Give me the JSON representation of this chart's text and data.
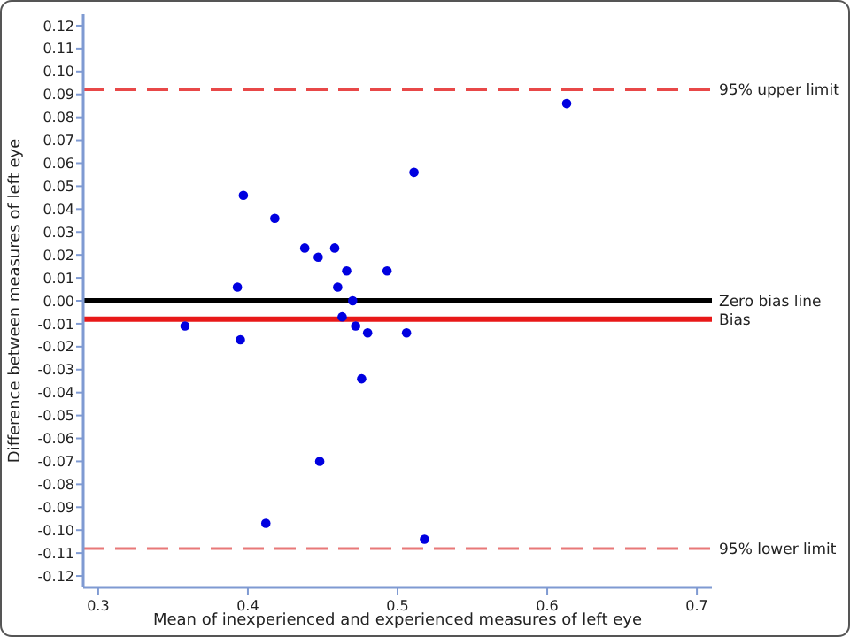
{
  "chart_data": {
    "type": "scatter",
    "xlabel": "Mean of inexperienced and experienced measures of left eye",
    "ylabel": "Difference between measures of left eye",
    "xlim": [
      0.29,
      0.71
    ],
    "ylim": [
      -0.125,
      0.125
    ],
    "xticks": [
      {
        "value": 0.3,
        "label": "0.3"
      },
      {
        "value": 0.4,
        "label": "0.4"
      },
      {
        "value": 0.5,
        "label": "0.5"
      },
      {
        "value": 0.6,
        "label": "0.6"
      },
      {
        "value": 0.7,
        "label": "0.7"
      }
    ],
    "yticks": [
      {
        "value": -0.12,
        "label": "-0.12"
      },
      {
        "value": -0.11,
        "label": "-0.11"
      },
      {
        "value": -0.1,
        "label": "-0.10"
      },
      {
        "value": -0.09,
        "label": "-0.09"
      },
      {
        "value": -0.08,
        "label": "-0.08"
      },
      {
        "value": -0.07,
        "label": "-0.07"
      },
      {
        "value": -0.06,
        "label": "-0.06"
      },
      {
        "value": -0.05,
        "label": "-0.05"
      },
      {
        "value": -0.04,
        "label": "-0.04"
      },
      {
        "value": -0.03,
        "label": "-0.03"
      },
      {
        "value": -0.02,
        "label": "-0.02"
      },
      {
        "value": -0.01,
        "label": "-0.01"
      },
      {
        "value": 0,
        "label": "0.00"
      },
      {
        "value": 0.01,
        "label": "0.01"
      },
      {
        "value": 0.02,
        "label": "0.02"
      },
      {
        "value": 0.03,
        "label": "0.03"
      },
      {
        "value": 0.04,
        "label": "0.04"
      },
      {
        "value": 0.05,
        "label": "0.05"
      },
      {
        "value": 0.06,
        "label": "0.06"
      },
      {
        "value": 0.07,
        "label": "0.07"
      },
      {
        "value": 0.08,
        "label": "0.08"
      },
      {
        "value": 0.09,
        "label": "0.09"
      },
      {
        "value": 0.1,
        "label": "0.10"
      },
      {
        "value": 0.11,
        "label": "0.11"
      },
      {
        "value": 0.12,
        "label": "0.12"
      }
    ],
    "x": [
      0.613,
      0.511,
      0.397,
      0.418,
      0.438,
      0.447,
      0.458,
      0.466,
      0.493,
      0.393,
      0.46,
      0.47,
      0.463,
      0.358,
      0.472,
      0.48,
      0.506,
      0.395,
      0.476,
      0.448,
      0.412,
      0.518
    ],
    "values": [
      0.086,
      0.056,
      0.046,
      0.036,
      0.023,
      0.019,
      0.023,
      0.013,
      0.013,
      0.006,
      0.006,
      0.0,
      -0.007,
      -0.011,
      -0.011,
      -0.014,
      -0.014,
      -0.017,
      -0.034,
      -0.07,
      -0.097,
      -0.104
    ],
    "color": "#0000e0",
    "marker": "circle",
    "grid": false,
    "ref_lines": [
      {
        "axis": "y",
        "value": 0.092,
        "label": "95% upper limit",
        "color": "#e84848",
        "line_style": "dashed"
      },
      {
        "axis": "y",
        "value": 0,
        "label": "Zero bias line",
        "color": "#000000",
        "line_style": "solid"
      },
      {
        "axis": "y",
        "value": -0.008,
        "label": "Bias",
        "color": "#e81818",
        "line_style": "solid"
      },
      {
        "axis": "y",
        "value": -0.108,
        "label": "95% lower limit",
        "color": "#e87878",
        "line_style": "dashed"
      }
    ]
  }
}
